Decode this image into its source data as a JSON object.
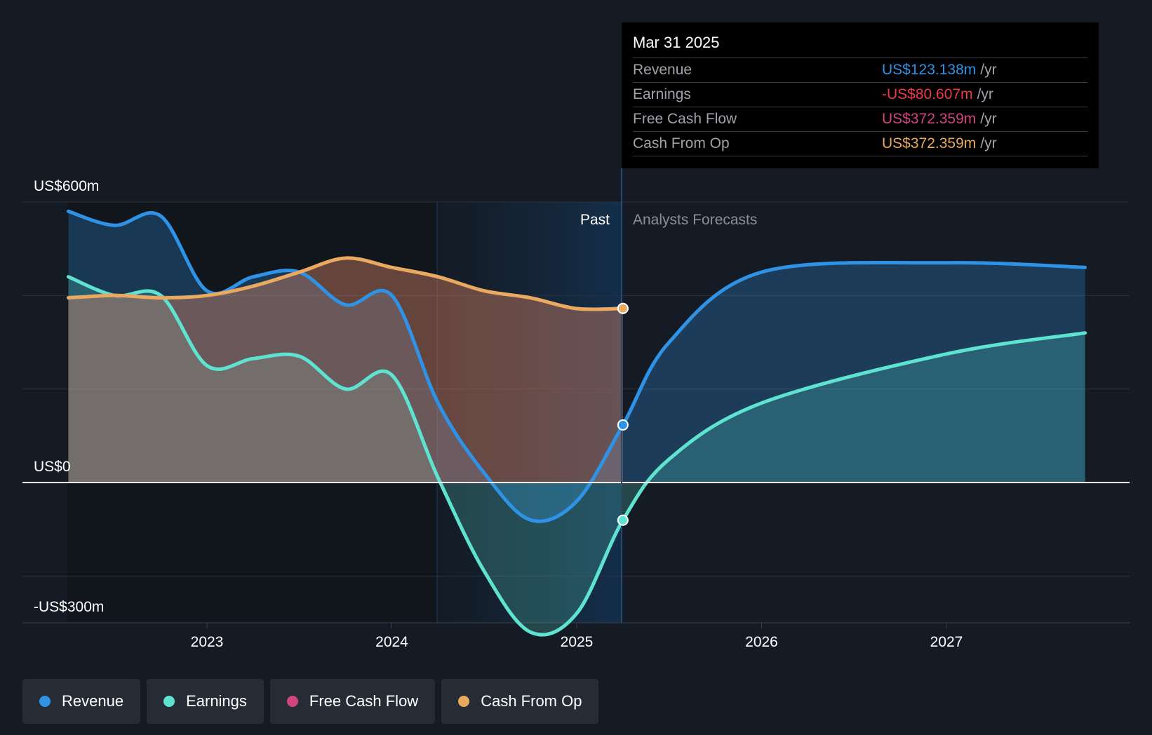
{
  "chart_data": {
    "type": "area",
    "y_axis": {
      "labels": [
        "US$600m",
        "US$0",
        "-US$300m"
      ],
      "ylim": [
        -300,
        600
      ]
    },
    "x_axis": {
      "ticks": [
        "2023",
        "2024",
        "2025",
        "2026",
        "2027"
      ]
    },
    "regions": {
      "past": "Past",
      "forecast": "Analysts Forecasts"
    },
    "series": [
      {
        "name": "Revenue",
        "color": "#2e93e6",
        "points": [
          [
            2022.25,
            580
          ],
          [
            2022.5,
            550
          ],
          [
            2022.75,
            570
          ],
          [
            2023.0,
            410
          ],
          [
            2023.25,
            440
          ],
          [
            2023.5,
            450
          ],
          [
            2023.75,
            380
          ],
          [
            2024.0,
            400
          ],
          [
            2024.25,
            170
          ],
          [
            2024.5,
            20
          ],
          [
            2024.75,
            -80
          ],
          [
            2025.0,
            -40
          ],
          [
            2025.25,
            123.138
          ],
          [
            2025.5,
            300
          ],
          [
            2026.0,
            450
          ],
          [
            2027.0,
            470
          ],
          [
            2027.75,
            460
          ]
        ]
      },
      {
        "name": "Earnings",
        "color": "#5fe3d1",
        "points": [
          [
            2022.25,
            440
          ],
          [
            2022.5,
            400
          ],
          [
            2022.75,
            400
          ],
          [
            2023.0,
            250
          ],
          [
            2023.25,
            265
          ],
          [
            2023.5,
            270
          ],
          [
            2023.75,
            200
          ],
          [
            2024.0,
            230
          ],
          [
            2024.25,
            10
          ],
          [
            2024.5,
            -190
          ],
          [
            2024.75,
            -320
          ],
          [
            2025.0,
            -280
          ],
          [
            2025.25,
            -80.607
          ],
          [
            2025.5,
            50
          ],
          [
            2026.0,
            170
          ],
          [
            2027.0,
            275
          ],
          [
            2027.75,
            320
          ]
        ]
      },
      {
        "name": "Free Cash Flow",
        "color": "#d1457e",
        "points": [
          [
            2022.25,
            395
          ],
          [
            2022.5,
            400
          ],
          [
            2022.75,
            395
          ],
          [
            2023.0,
            400
          ],
          [
            2023.25,
            420
          ],
          [
            2023.5,
            450
          ],
          [
            2023.75,
            480
          ],
          [
            2024.0,
            460
          ],
          [
            2024.25,
            440
          ],
          [
            2024.5,
            410
          ],
          [
            2024.75,
            395
          ],
          [
            2025.0,
            372
          ],
          [
            2025.25,
            372.359
          ]
        ]
      },
      {
        "name": "Cash From Op",
        "color": "#e8aa5e",
        "points": [
          [
            2022.25,
            395
          ],
          [
            2022.5,
            400
          ],
          [
            2022.75,
            395
          ],
          [
            2023.0,
            400
          ],
          [
            2023.25,
            420
          ],
          [
            2023.5,
            450
          ],
          [
            2023.75,
            480
          ],
          [
            2024.0,
            460
          ],
          [
            2024.25,
            440
          ],
          [
            2024.5,
            410
          ],
          [
            2024.75,
            395
          ],
          [
            2025.0,
            372
          ],
          [
            2025.25,
            372.359
          ]
        ]
      }
    ]
  },
  "tooltip": {
    "date": "Mar 31 2025",
    "unit": "/yr",
    "rows": [
      {
        "label": "Revenue",
        "value": "US$123.138m",
        "color": "#2e93e6"
      },
      {
        "label": "Earnings",
        "value": "-US$80.607m",
        "color": "#ee3b47"
      },
      {
        "label": "Free Cash Flow",
        "value": "US$372.359m",
        "color": "#d1457e"
      },
      {
        "label": "Cash From Op",
        "value": "US$372.359m",
        "color": "#e8aa5e"
      }
    ]
  },
  "legend": [
    {
      "label": "Revenue",
      "color": "#2e93e6"
    },
    {
      "label": "Earnings",
      "color": "#5fe3d1"
    },
    {
      "label": "Free Cash Flow",
      "color": "#d1457e"
    },
    {
      "label": "Cash From Op",
      "color": "#e8aa5e"
    }
  ]
}
